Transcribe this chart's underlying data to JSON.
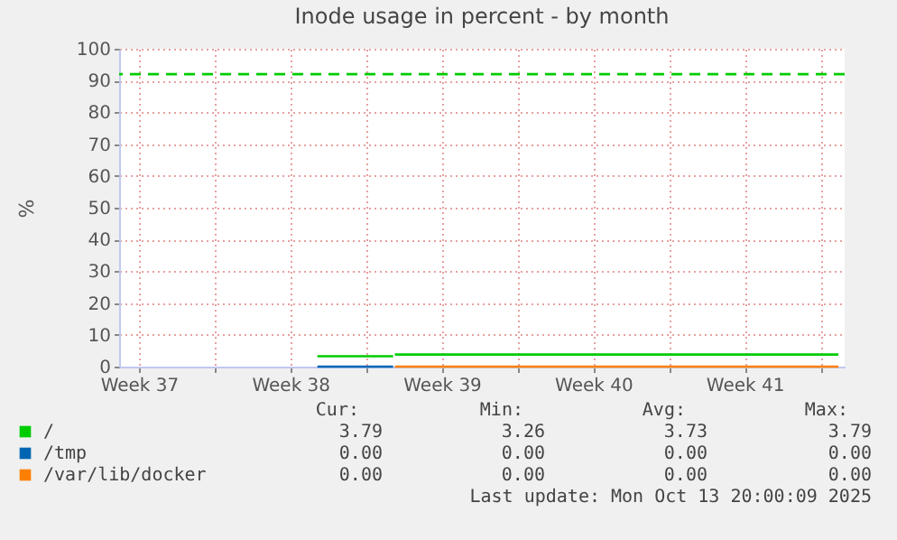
{
  "chart_data": {
    "type": "line",
    "title": "Inode usage in percent - by month",
    "ylabel": "%",
    "xlim": [
      "2025-09-10T14:00",
      "2025-10-14T03:00"
    ],
    "xticks": [
      {
        "value": "2025-09-11T12:00",
        "label": "Week 37"
      },
      {
        "value": "2025-09-15",
        "label": null
      },
      {
        "value": "2025-09-18T12:00",
        "label": "Week 38"
      },
      {
        "value": "2025-09-22",
        "label": null
      },
      {
        "value": "2025-09-25T12:00",
        "label": "Week 39"
      },
      {
        "value": "2025-09-29",
        "label": null
      },
      {
        "value": "2025-10-02T12:00",
        "label": "Week 40"
      },
      {
        "value": "2025-10-06",
        "label": null
      },
      {
        "value": "2025-10-09T12:00",
        "label": "Week 41"
      },
      {
        "value": "2025-10-13",
        "label": null
      }
    ],
    "ylim": [
      0,
      100
    ],
    "yticks": [
      0,
      10,
      20,
      30,
      40,
      50,
      60,
      70,
      80,
      90,
      100
    ],
    "grid": true,
    "legend": "bottom",
    "line_style": "solid",
    "marker": "none",
    "series": [
      {
        "name": "/",
        "color": "#00cc00",
        "x": [
          "2025-09-19T18:00",
          "2025-09-23T06:00",
          "2025-09-23T07:00",
          "2025-09-23T08:00",
          "2025-10-13T20:00"
        ],
        "values": [
          3.26,
          3.26,
          null,
          3.79,
          3.79
        ]
      },
      {
        "name": "/tmp",
        "color": "#0066b3",
        "x": [
          "2025-09-19T18:00",
          "2025-09-23T06:00"
        ],
        "values": [
          0,
          0
        ]
      },
      {
        "name": "/var/lib/docker",
        "color": "#ff8000",
        "x": [
          "2025-09-23T08:00",
          "2025-10-13T20:00"
        ],
        "values": [
          0,
          0
        ]
      }
    ],
    "ref_lines": [
      {
        "axis": "y",
        "value": 92,
        "label": null,
        "color": "#00cc00",
        "line_style": "dashed"
      }
    ],
    "annotations": [
      "Cur:",
      "Min:",
      "Avg:",
      "Max:",
      "3.79",
      "3.26",
      "3.73",
      "3.79",
      "0.00",
      "0.00",
      "0.00",
      "0.00",
      "0.00",
      "0.00",
      "0.00",
      "0.00",
      "Last update: Mon Oct 13 20:00:09 2025"
    ]
  }
}
